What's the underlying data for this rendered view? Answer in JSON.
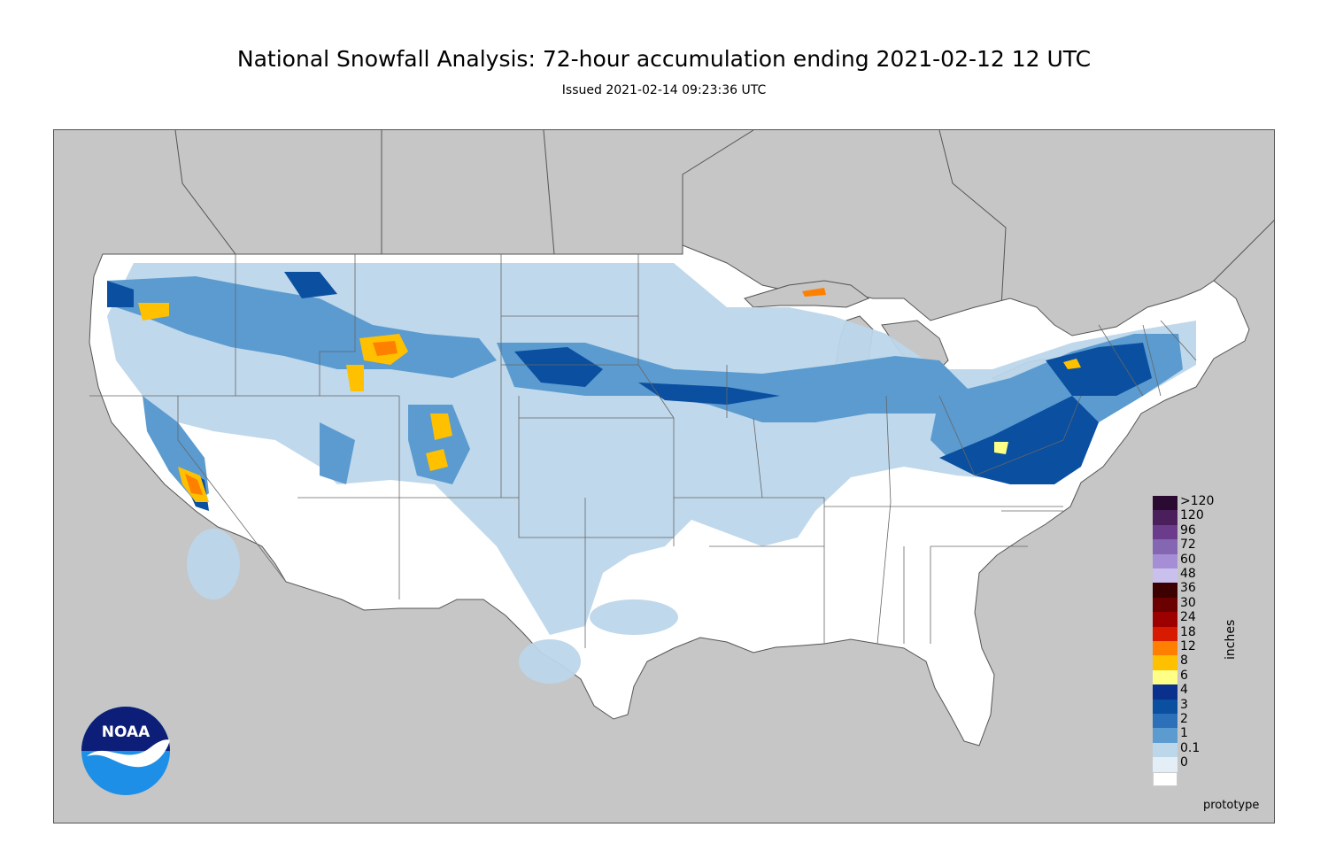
{
  "header": {
    "title": "National Snowfall Analysis: 72-hour accumulation ending 2021-02-12 12 UTC",
    "subtitle": "Issued 2021-02-14 09:23:36 UTC"
  },
  "legend": {
    "units_label": "inches",
    "items": [
      {
        "label": ">120",
        "color": "#2a0a30"
      },
      {
        "label": "120",
        "color": "#4a1f5c"
      },
      {
        "label": "96",
        "color": "#6b3b8c"
      },
      {
        "label": "72",
        "color": "#8566b3"
      },
      {
        "label": "60",
        "color": "#a58ed6"
      },
      {
        "label": "48",
        "color": "#c9c0ee"
      },
      {
        "label": "36",
        "color": "#3d0000"
      },
      {
        "label": "30",
        "color": "#6b0000"
      },
      {
        "label": "24",
        "color": "#9c0000"
      },
      {
        "label": "18",
        "color": "#d81a00"
      },
      {
        "label": "12",
        "color": "#ff7f00"
      },
      {
        "label": "8",
        "color": "#ffc000"
      },
      {
        "label": "6",
        "color": "#ffff88"
      },
      {
        "label": "4",
        "color": "#08308c"
      },
      {
        "label": "3",
        "color": "#0a4fa0"
      },
      {
        "label": "2",
        "color": "#2b70b8"
      },
      {
        "label": "1",
        "color": "#5b9bd0"
      },
      {
        "label": "0.1",
        "color": "#bcd6ea"
      },
      {
        "label": "0",
        "color": "#e3eef7"
      }
    ],
    "zero_color": "#ffffff"
  },
  "footer": {
    "prototype_label": "prototype"
  },
  "logo": {
    "text": "NOAA"
  },
  "colors": {
    "ocean_land_bg": "#c6c6c6",
    "conus": "#ffffff"
  }
}
